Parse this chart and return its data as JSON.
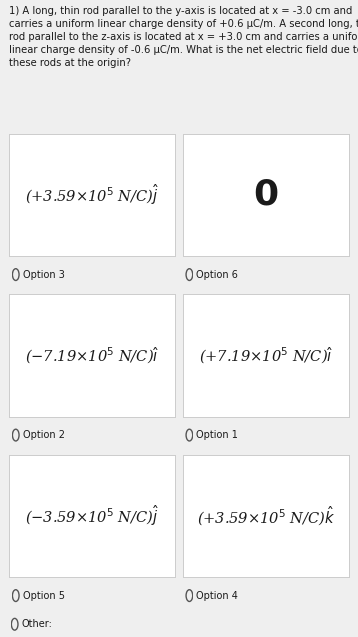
{
  "title_text": "1) A long, thin rod parallel to the y-axis is located at x = -3.0 cm and\ncarries a uniform linear charge density of +0.6 μC/m. A second long, thin\nrod parallel to the z-axis is located at x = +3.0 cm and carries a uniform\nlinear charge density of -0.6 μC/m. What is the net electric field due to\nthese rods at the origin?",
  "options": [
    {
      "label": "Option 3",
      "text": "(+3.59×10$^5$ N/C)$\\hat{j}$",
      "row": 0,
      "col": 0,
      "fontsize": 10.5,
      "zero": false
    },
    {
      "label": "Option 6",
      "text": "0",
      "row": 0,
      "col": 1,
      "fontsize": 26,
      "zero": true
    },
    {
      "label": "Option 2",
      "text": "(−7.19×10$^5$ N/C)$\\hat{\\imath}$",
      "row": 1,
      "col": 0,
      "fontsize": 10.5,
      "zero": false
    },
    {
      "label": "Option 1",
      "text": "(+7.19×10$^5$ N/C)$\\hat{\\imath}$",
      "row": 1,
      "col": 1,
      "fontsize": 10.5,
      "zero": false
    },
    {
      "label": "Option 5",
      "text": "(−3.59×10$^5$ N/C)$\\hat{j}$",
      "row": 2,
      "col": 0,
      "fontsize": 10.5,
      "zero": false
    },
    {
      "label": "Option 4",
      "text": "(+3.59×10$^5$ N/C)$\\hat{k}$",
      "row": 2,
      "col": 1,
      "fontsize": 10.5,
      "zero": false
    }
  ],
  "other_label": "Other:",
  "bg_color": "#efefef",
  "card_color": "#ffffff",
  "text_color": "#1a1a1a",
  "title_fontsize": 7.2,
  "label_fontsize": 7.0,
  "radio_color": "#555555",
  "border_color": "#cccccc"
}
